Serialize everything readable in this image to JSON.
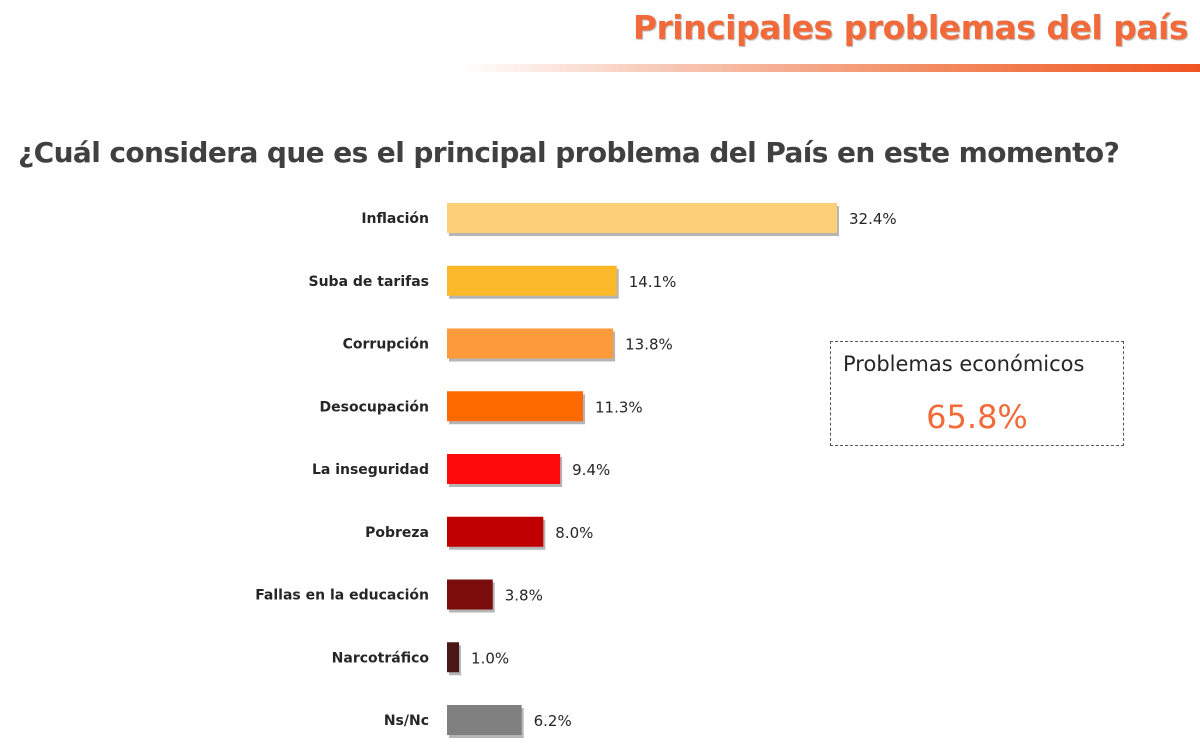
{
  "header": {
    "title": "Principales problemas del país"
  },
  "question": "¿Cuál considera que es el principal problema del País en este momento?",
  "callout": {
    "label": "Problemas económicos",
    "value": "65.8%"
  },
  "chart_data": {
    "type": "bar",
    "orientation": "horizontal",
    "title": "",
    "categories": [
      "Inflación",
      "Suba de tarifas",
      "Corrupción",
      "Desocupación",
      "La inseguridad",
      "Pobreza",
      "Fallas en la educación",
      "Narcotráfico",
      "Ns/Nc"
    ],
    "values": [
      32.4,
      14.1,
      13.8,
      11.3,
      9.4,
      8.0,
      3.8,
      1.0,
      6.2
    ],
    "value_labels": [
      "32.4%",
      "14.1%",
      "13.8%",
      "11.3%",
      "9.4%",
      "8.0%",
      "3.8%",
      "1.0%",
      "6.2%"
    ],
    "colors": [
      "#FDCF78",
      "#FBB829",
      "#FD9A3A",
      "#FF6A00",
      "#FF0A0A",
      "#C00000",
      "#7A0C0C",
      "#4A1717",
      "#808080"
    ],
    "unit": "%",
    "grid": false,
    "legend": "none"
  }
}
